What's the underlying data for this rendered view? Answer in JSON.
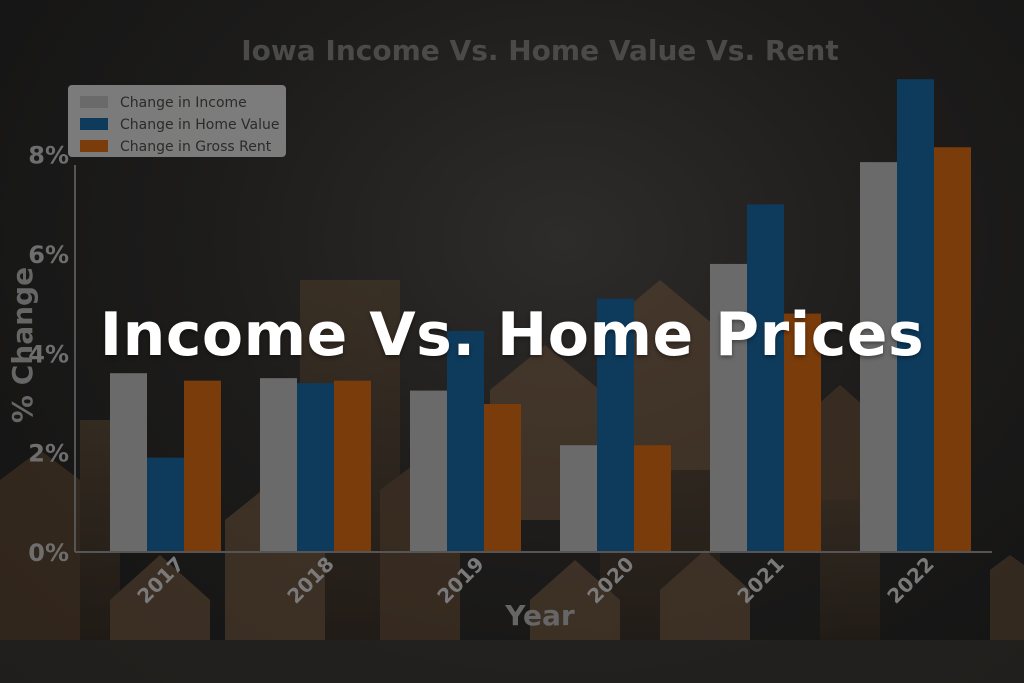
{
  "overlay_title": "Income Vs. Home Prices",
  "colors": {
    "income": "#6a6a6a",
    "home_value": "#0e3b5c",
    "gross_rent": "#7a3c0a"
  },
  "chart_data": {
    "type": "bar",
    "title": "Iowa Income Vs.  Home Value Vs. Rent",
    "xlabel": "Year",
    "ylabel": "% Change",
    "categories": [
      "2017",
      "2018",
      "2019",
      "2020",
      "2021",
      "2022"
    ],
    "ylim": [
      0,
      0.09
    ],
    "yticks": [
      "0%",
      "2%",
      "4%",
      "6%",
      "8%"
    ],
    "legend_position": "top-left",
    "series": [
      {
        "name": "Change in Income",
        "values": [
          0.036,
          0.035,
          0.0325,
          0.0215,
          0.058,
          0.0785
        ]
      },
      {
        "name": "Change in Home Value",
        "values": [
          0.019,
          0.034,
          0.0445,
          0.051,
          0.07,
          0.0952
        ]
      },
      {
        "name": "Change in Gross Rent",
        "values": [
          0.0345,
          0.0345,
          0.0298,
          0.0215,
          0.048,
          0.0815
        ]
      }
    ]
  }
}
